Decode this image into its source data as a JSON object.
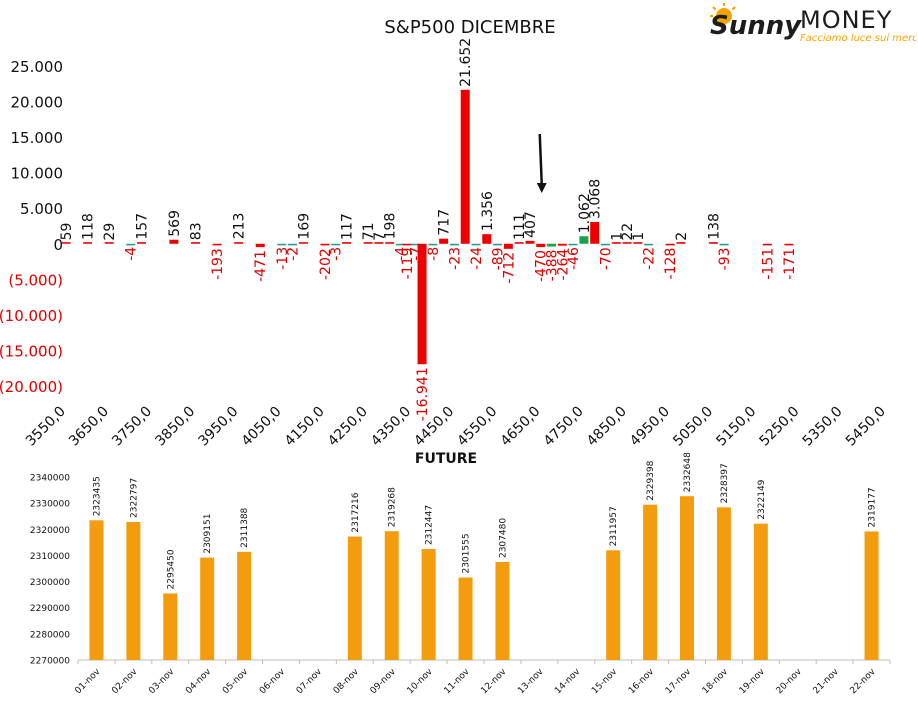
{
  "logo": {
    "word1": "Sunny",
    "word2": "MONEY",
    "tagline": "Facciamo luce sui mercati",
    "colors": {
      "sun": "#f5a300",
      "text": "#1d1d1b",
      "tagline": "#f5a300"
    }
  },
  "chart_data": [
    {
      "type": "bar",
      "title": "S&P500 DICEMBRE",
      "xlabel": "",
      "ylabel": "",
      "x_range": [
        3550,
        5450
      ],
      "x_ticks": [
        3550,
        3650,
        3750,
        3850,
        3950,
        4050,
        4150,
        4250,
        4350,
        4450,
        4550,
        4650,
        4750,
        4850,
        4950,
        5050,
        5150,
        5250,
        5350,
        5450
      ],
      "x_tick_labels": [
        "3550,0",
        "3650,0",
        "3750,0",
        "3850,0",
        "3950,0",
        "4050,0",
        "4150,0",
        "4250,0",
        "4350,0",
        "4450,0",
        "4550,0",
        "4650,0",
        "4750,0",
        "4850,0",
        "4950,0",
        "5050,0",
        "5150,0",
        "5250,0",
        "5350,0",
        "5450,0"
      ],
      "ylim": [
        -20000,
        25000
      ],
      "y_ticks": [
        25000,
        20000,
        15000,
        10000,
        5000,
        0,
        -5000,
        -10000,
        -15000,
        -20000
      ],
      "y_tick_labels": [
        "25.000",
        "20.000",
        "15.000",
        "10.000",
        "5.000",
        "0",
        "(5.000)",
        "(10.000)",
        "(15.000)",
        "(20.000)"
      ],
      "grid": false,
      "legend": "none",
      "colors": {
        "red": "#ee0000",
        "green": "#18a34a",
        "teal": "#2a9d8f",
        "neg_label": "#dd0000",
        "text": "#111111"
      },
      "annotation": "arrow pointing down at 4650",
      "annotation_arrow_at": 4650,
      "series": [
        {
          "values": [
            {
              "x": 3550,
              "y": 59,
              "label": "59"
            },
            {
              "x": 3600,
              "y": 118,
              "label": "118"
            },
            {
              "x": 3650,
              "y": 29,
              "label": "29"
            },
            {
              "x": 3700,
              "y": -4,
              "label": "-4"
            },
            {
              "x": 3725,
              "y": 157,
              "label": "157"
            },
            {
              "x": 3800,
              "y": 569,
              "label": "569"
            },
            {
              "x": 3850,
              "y": 83,
              "label": "83"
            },
            {
              "x": 3900,
              "y": -193,
              "label": "-193"
            },
            {
              "x": 3950,
              "y": 213,
              "label": "213"
            },
            {
              "x": 4000,
              "y": -471,
              "label": "-471"
            },
            {
              "x": 4050,
              "y": -13,
              "label": "-13"
            },
            {
              "x": 4075,
              "y": -2,
              "label": "-2"
            },
            {
              "x": 4100,
              "y": 169,
              "label": "169"
            },
            {
              "x": 4150,
              "y": -202,
              "label": "-202"
            },
            {
              "x": 4175,
              "y": -3,
              "label": "-3"
            },
            {
              "x": 4200,
              "y": 117,
              "label": "117"
            },
            {
              "x": 4250,
              "y": 71,
              "label": "71"
            },
            {
              "x": 4275,
              "y": 7,
              "label": "7"
            },
            {
              "x": 4300,
              "y": 198,
              "label": "198"
            },
            {
              "x": 4325,
              "y": -4,
              "label": "-4"
            },
            {
              "x": 4340,
              "y": -119,
              "label": "-119"
            },
            {
              "x": 4360,
              "y": -7,
              "label": "-7"
            },
            {
              "x": 4375,
              "y": -16941,
              "label": "-16.941"
            },
            {
              "x": 4400,
              "y": -8,
              "label": "-8"
            },
            {
              "x": 4425,
              "y": 717,
              "label": "717"
            },
            {
              "x": 4450,
              "y": -23,
              "label": "-23"
            },
            {
              "x": 4475,
              "y": 21652,
              "label": "21.652"
            },
            {
              "x": 4500,
              "y": -24,
              "label": "-24"
            },
            {
              "x": 4525,
              "y": 1356,
              "label": "1.356"
            },
            {
              "x": 4550,
              "y": -89,
              "label": "-89"
            },
            {
              "x": 4575,
              "y": -712,
              "label": "-712"
            },
            {
              "x": 4600,
              "y": 111,
              "label": "111"
            },
            {
              "x": 4625,
              "y": 407,
              "label": "407"
            },
            {
              "x": 4650,
              "y": -470,
              "label": "-470"
            },
            {
              "x": 4675,
              "y": -388,
              "label": "-388"
            },
            {
              "x": 4700,
              "y": -264,
              "label": "-264"
            },
            {
              "x": 4725,
              "y": -46,
              "label": "-46"
            },
            {
              "x": 4750,
              "y": 1062,
              "label": "1.062"
            },
            {
              "x": 4775,
              "y": 3068,
              "label": "3.068"
            },
            {
              "x": 4800,
              "y": -70,
              "label": "-70"
            },
            {
              "x": 4825,
              "y": 1,
              "label": "1"
            },
            {
              "x": 4850,
              "y": 22,
              "label": "22"
            },
            {
              "x": 4875,
              "y": 1,
              "label": "1"
            },
            {
              "x": 4900,
              "y": -22,
              "label": "-22"
            },
            {
              "x": 4950,
              "y": -128,
              "label": "-128"
            },
            {
              "x": 4975,
              "y": 2,
              "label": "2"
            },
            {
              "x": 5050,
              "y": 138,
              "label": "138"
            },
            {
              "x": 5075,
              "y": -93,
              "label": "-93"
            },
            {
              "x": 5175,
              "y": -151,
              "label": "-151"
            },
            {
              "x": 5225,
              "y": -171,
              "label": "-171"
            }
          ]
        }
      ]
    },
    {
      "type": "bar",
      "title": "FUTURE",
      "xlabel": "",
      "ylabel": "",
      "ylim": [
        2270000,
        2340000
      ],
      "y_ticks": [
        2270000,
        2280000,
        2290000,
        2300000,
        2310000,
        2320000,
        2330000,
        2340000
      ],
      "y_tick_labels": [
        "2270000",
        "2280000",
        "2290000",
        "2300000",
        "2310000",
        "2320000",
        "2330000",
        "2340000"
      ],
      "grid": false,
      "legend": "none",
      "color": "#f39c0d",
      "categories": [
        "01-nov",
        "02-nov",
        "03-nov",
        "04-nov",
        "05-nov",
        "06-nov",
        "07-nov",
        "08-nov",
        "09-nov",
        "10-nov",
        "11-nov",
        "12-nov",
        "13-nov",
        "14-nov",
        "15-nov",
        "16-nov",
        "17-nov",
        "18-nov",
        "19-nov",
        "20-nov",
        "21-nov",
        "22-nov"
      ],
      "values": [
        2323435,
        2322797,
        2295450,
        2309151,
        2311388,
        null,
        null,
        2317216,
        2319268,
        2312447,
        2301555,
        2307480,
        null,
        null,
        2311957,
        2329398,
        2332648,
        2328397,
        2322149,
        null,
        null,
        2319177
      ]
    }
  ]
}
